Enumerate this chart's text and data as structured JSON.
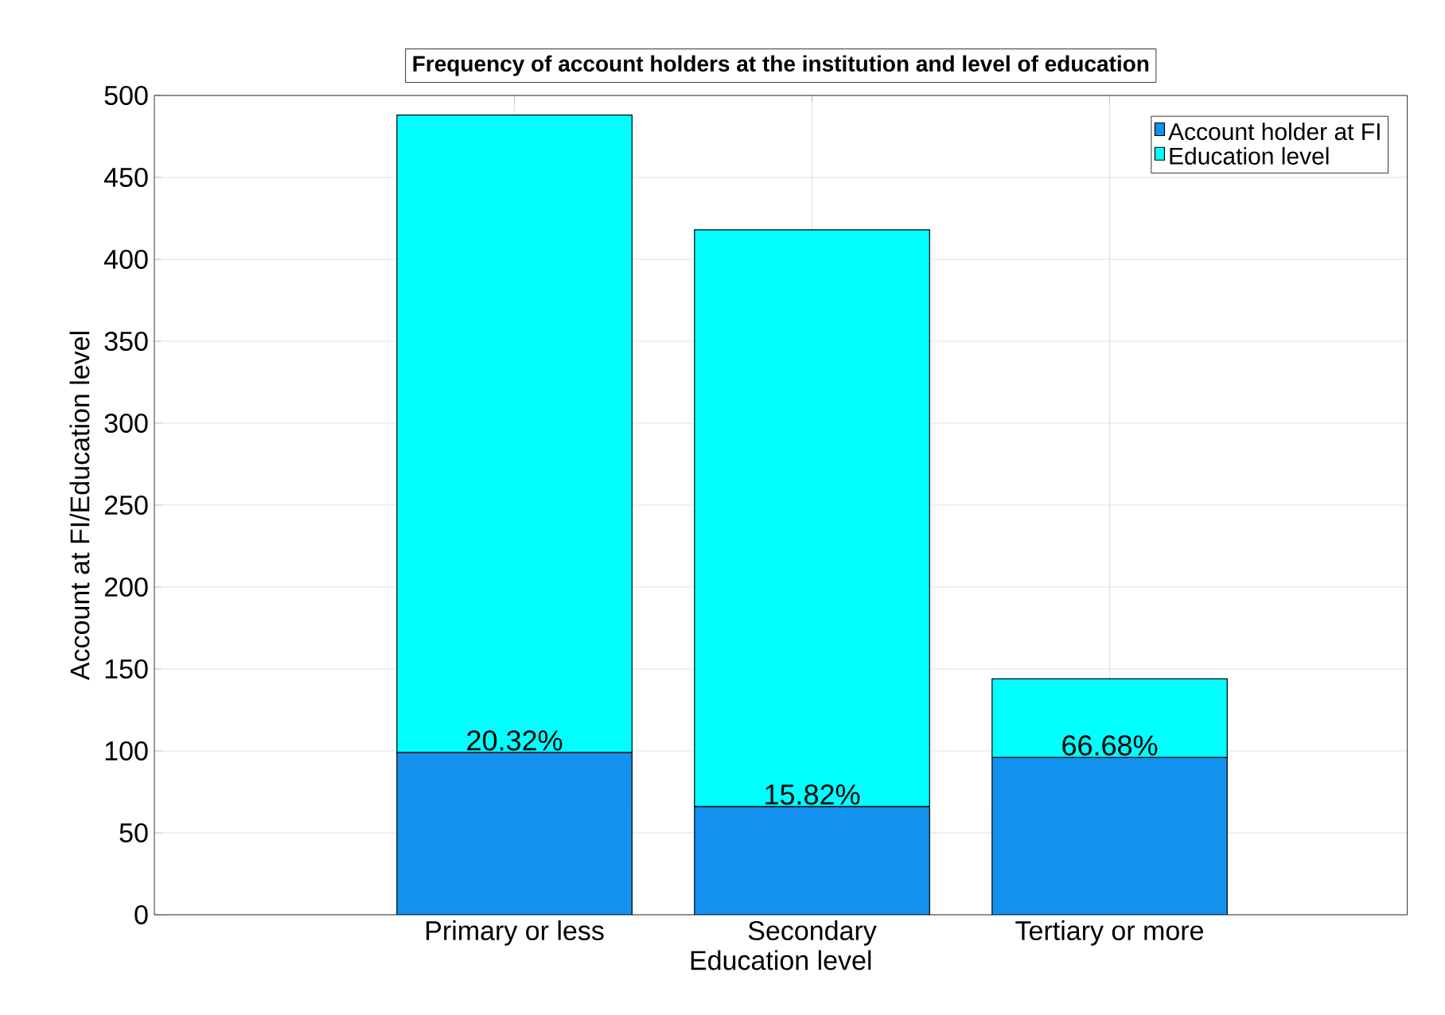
{
  "chart_data": {
    "type": "bar",
    "title": "Frequency of account holders at the institution and level of education",
    "xlabel": "Education level",
    "ylabel": "Account at FI/Education level",
    "categories": [
      "Primary or less",
      "Secondary",
      "Tertiary or more"
    ],
    "stacked": true,
    "series": [
      {
        "name": "Account holder at FI",
        "color": "#1391ef",
        "values": [
          99,
          66,
          96
        ]
      },
      {
        "name": "Education level",
        "color": "#00ffff",
        "values": [
          389,
          352,
          48
        ]
      }
    ],
    "annotations": [
      {
        "text": "20.32%",
        "x": "Primary or less",
        "y": 99
      },
      {
        "text": "15.82%",
        "x": "Secondary",
        "y": 66
      },
      {
        "text": "66.68%",
        "x": "Tertiary or more",
        "y": 96
      }
    ],
    "ylim": [
      0,
      500
    ],
    "yticks": [
      0,
      50,
      100,
      150,
      200,
      250,
      300,
      350,
      400,
      450,
      500
    ],
    "grid": true,
    "legend": "top right"
  }
}
